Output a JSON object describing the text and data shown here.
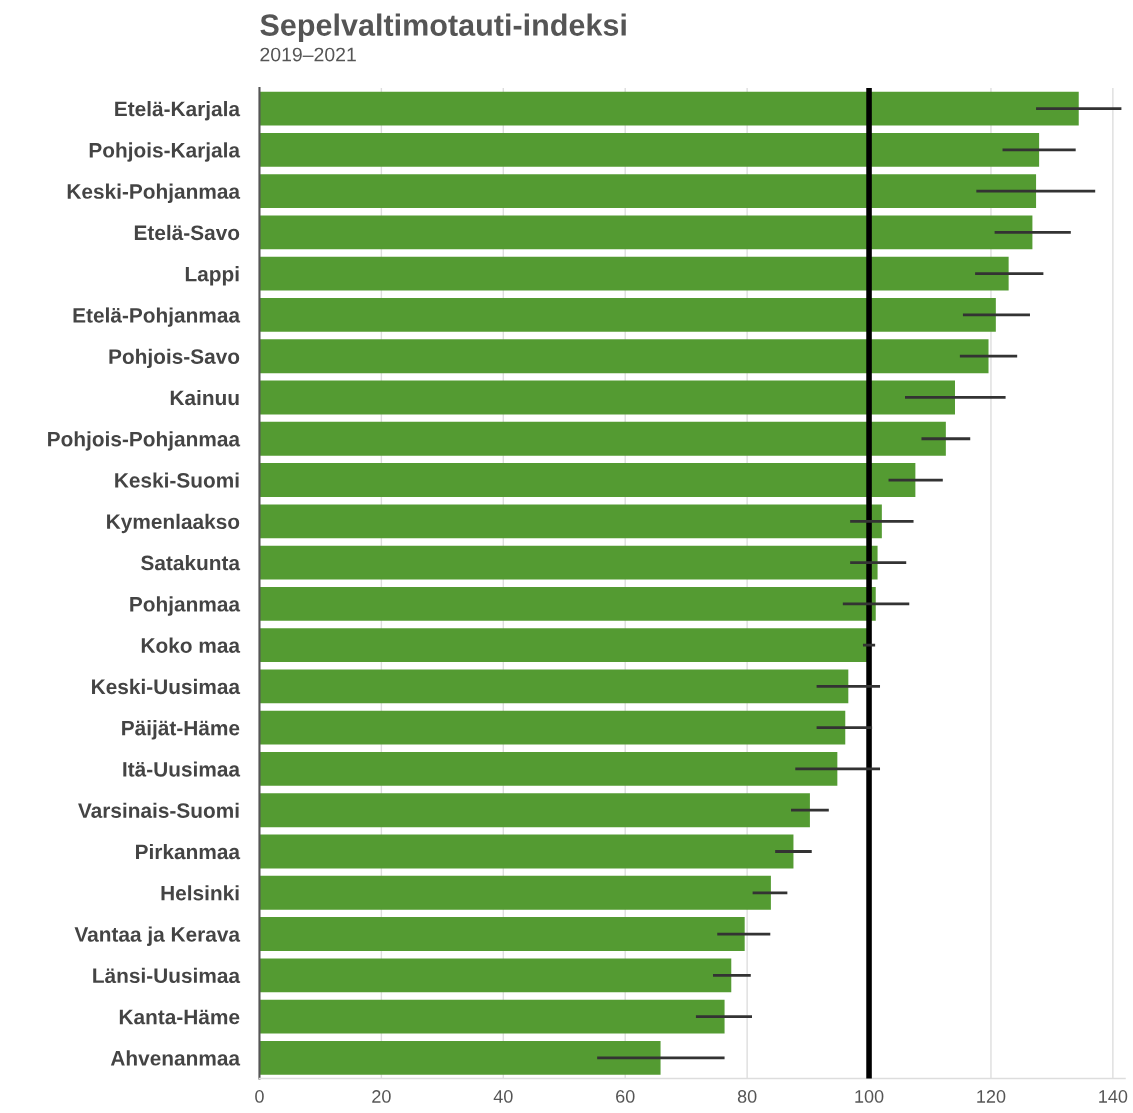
{
  "chart_data": {
    "type": "bar",
    "orientation": "horizontal",
    "title": "Sepelvaltimotauti-indeksi",
    "subtitle": "2019–2021",
    "categories": [
      "Etelä-Karjala",
      "Pohjois-Karjala",
      "Keski-Pohjanmaa",
      "Etelä-Savo",
      "Lappi",
      "Etelä-Pohjanmaa",
      "Pohjois-Savo",
      "Kainuu",
      "Pohjois-Pohjanmaa",
      "Keski-Suomi",
      "Kymenlaakso",
      "Satakunta",
      "Pohjanmaa",
      "Koko maa",
      "Keski-Uusimaa",
      "Päijät-Häme",
      "Itä-Uusimaa",
      "Varsinais-Suomi",
      "Pirkanmaa",
      "Helsinki",
      "Vantaa ja Kerava",
      "Länsi-Uusimaa",
      "Kanta-Häme",
      "Ahvenanmaa"
    ],
    "values": [
      134.4,
      127.9,
      127.4,
      126.8,
      122.9,
      120.8,
      119.6,
      114.1,
      112.6,
      107.6,
      102.1,
      101.4,
      101.1,
      100,
      96.6,
      96.1,
      94.8,
      90.3,
      87.6,
      83.9,
      79.6,
      77.4,
      76.3,
      65.8
    ],
    "errors": [
      [
        127.4,
        141.4
      ],
      [
        121.9,
        133.9
      ],
      [
        117.6,
        137.1
      ],
      [
        120.6,
        133.1
      ],
      [
        117.4,
        128.6
      ],
      [
        115.4,
        126.4
      ],
      [
        114.9,
        124.3
      ],
      [
        105.9,
        122.4
      ],
      [
        108.6,
        116.6
      ],
      [
        103.2,
        112.1
      ],
      [
        96.9,
        107.3
      ],
      [
        96.9,
        106.1
      ],
      [
        95.7,
        106.6
      ],
      [
        99,
        101
      ],
      [
        91.4,
        101.8
      ],
      [
        91.4,
        100.5
      ],
      [
        87.9,
        101.8
      ],
      [
        87.2,
        93.4
      ],
      [
        84.6,
        90.6
      ],
      [
        80.9,
        86.6
      ],
      [
        75.1,
        83.8
      ],
      [
        74.4,
        80.6
      ],
      [
        71.6,
        80.8
      ],
      [
        55.4,
        76.3
      ]
    ],
    "color": "#549b32",
    "xlim": [
      0,
      142
    ],
    "xticks": [
      0,
      20,
      40,
      60,
      80,
      100,
      120,
      140
    ],
    "ref_lines": [
      {
        "axis": "x",
        "value": 100,
        "color": "#000000"
      }
    ],
    "grid": "x"
  }
}
